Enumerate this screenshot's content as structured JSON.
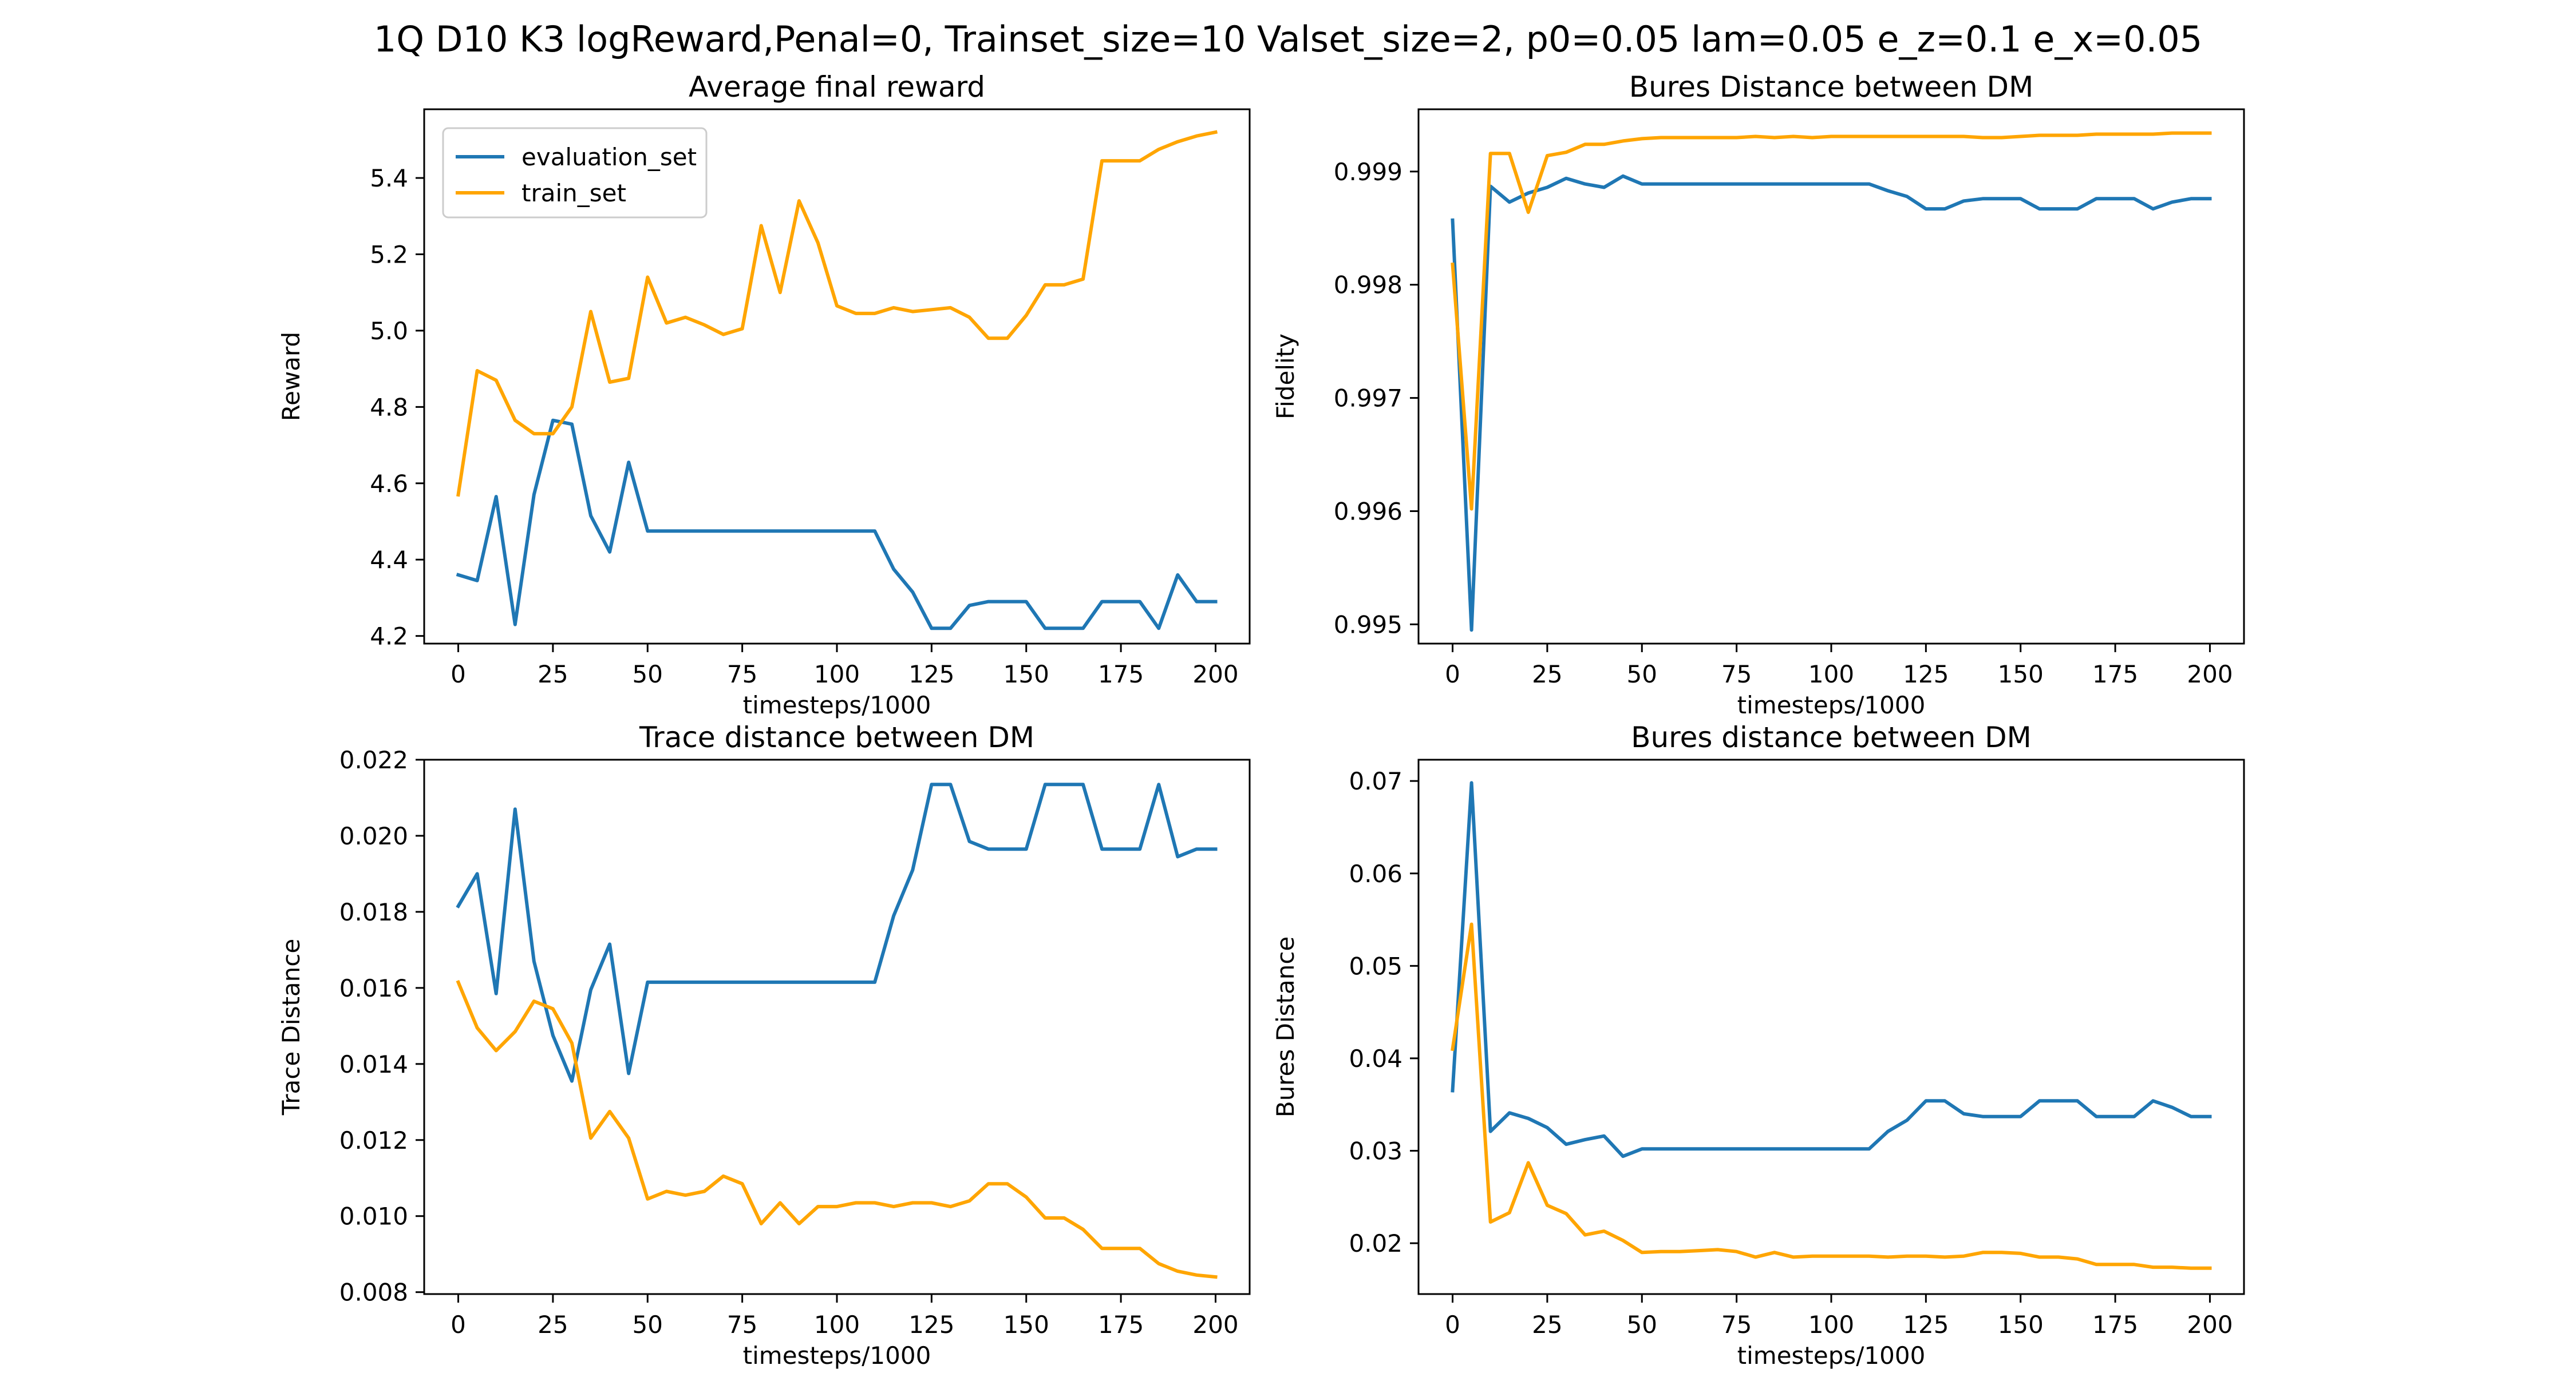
{
  "figure": {
    "suptitle": "1Q D10 K3 logReward,Penal=0, Trainset_size=10 Valset_size=2, p0=0.05 lam=0.05 e_z=0.1 e_x=0.05"
  },
  "colors": {
    "evaluation_set": "#1f77b4",
    "train_set": "#ffa500"
  },
  "chart_data": [
    {
      "type": "line",
      "title": "Average final reward",
      "xlabel": "timesteps/1000",
      "ylabel": "Reward",
      "xlim": [
        -9,
        209
      ],
      "ylim": [
        4.18,
        5.58
      ],
      "xticks": [
        0,
        25,
        50,
        75,
        100,
        125,
        150,
        175,
        200
      ],
      "yticks": [
        4.2,
        4.4,
        4.6,
        4.8,
        5.0,
        5.2,
        5.4
      ],
      "ytick_labels": [
        "4.2",
        "4.4",
        "4.6",
        "4.8",
        "5.0",
        "5.2",
        "5.4"
      ],
      "legend": {
        "position": "upper-left",
        "entries": [
          "evaluation_set",
          "train_set"
        ]
      },
      "x": [
        0,
        5,
        10,
        15,
        20,
        25,
        30,
        35,
        40,
        45,
        50,
        55,
        60,
        65,
        70,
        75,
        80,
        85,
        90,
        95,
        100,
        105,
        110,
        115,
        120,
        125,
        130,
        135,
        140,
        145,
        150,
        155,
        160,
        165,
        170,
        175,
        180,
        185,
        190,
        195,
        200
      ],
      "series": [
        {
          "name": "evaluation_set",
          "values": [
            4.36,
            4.345,
            4.565,
            4.23,
            4.57,
            4.765,
            4.755,
            4.515,
            4.42,
            4.655,
            4.475,
            4.475,
            4.475,
            4.475,
            4.475,
            4.475,
            4.475,
            4.475,
            4.475,
            4.475,
            4.475,
            4.475,
            4.475,
            4.375,
            4.315,
            4.22,
            4.22,
            4.28,
            4.29,
            4.29,
            4.29,
            4.22,
            4.22,
            4.22,
            4.29,
            4.29,
            4.29,
            4.22,
            4.36,
            4.29,
            4.29
          ]
        },
        {
          "name": "train_set",
          "values": [
            4.57,
            4.895,
            4.87,
            4.765,
            4.73,
            4.73,
            4.8,
            5.05,
            4.865,
            4.875,
            5.14,
            5.02,
            5.035,
            5.015,
            4.99,
            5.005,
            5.275,
            5.1,
            5.34,
            5.23,
            5.065,
            5.045,
            5.045,
            5.06,
            5.05,
            5.055,
            5.06,
            5.035,
            4.98,
            4.98,
            5.04,
            5.12,
            5.12,
            5.135,
            5.445,
            5.445,
            5.445,
            5.475,
            5.495,
            5.51,
            5.52
          ]
        }
      ]
    },
    {
      "type": "line",
      "title": "Bures Distance between DM",
      "xlabel": "timesteps/1000",
      "ylabel": "Fidelity",
      "xlim": [
        -9,
        209
      ],
      "ylim": [
        0.99483,
        0.99955
      ],
      "xticks": [
        0,
        25,
        50,
        75,
        100,
        125,
        150,
        175,
        200
      ],
      "yticks": [
        0.995,
        0.996,
        0.997,
        0.998,
        0.999
      ],
      "ytick_labels": [
        "0.995",
        "0.996",
        "0.997",
        "0.998",
        "0.999"
      ],
      "x": [
        0,
        5,
        10,
        15,
        20,
        25,
        30,
        35,
        40,
        45,
        50,
        55,
        60,
        65,
        70,
        75,
        80,
        85,
        90,
        95,
        100,
        105,
        110,
        115,
        120,
        125,
        130,
        135,
        140,
        145,
        150,
        155,
        160,
        165,
        170,
        175,
        180,
        185,
        190,
        195,
        200
      ],
      "series": [
        {
          "name": "evaluation_set",
          "values": [
            0.99857,
            0.99495,
            0.99887,
            0.99873,
            0.99881,
            0.99886,
            0.99894,
            0.99889,
            0.99886,
            0.99896,
            0.99889,
            0.99889,
            0.99889,
            0.99889,
            0.99889,
            0.99889,
            0.99889,
            0.99889,
            0.99889,
            0.99889,
            0.99889,
            0.99889,
            0.99889,
            0.99883,
            0.99878,
            0.99867,
            0.99867,
            0.99874,
            0.99876,
            0.99876,
            0.99876,
            0.99867,
            0.99867,
            0.99867,
            0.99876,
            0.99876,
            0.99876,
            0.99867,
            0.99873,
            0.99876,
            0.99876
          ]
        },
        {
          "name": "train_set",
          "values": [
            0.99818,
            0.99602,
            0.99916,
            0.99916,
            0.99864,
            0.99914,
            0.99917,
            0.99924,
            0.99924,
            0.99927,
            0.99929,
            0.9993,
            0.9993,
            0.9993,
            0.9993,
            0.9993,
            0.99931,
            0.9993,
            0.99931,
            0.9993,
            0.99931,
            0.99931,
            0.99931,
            0.99931,
            0.99931,
            0.99931,
            0.99931,
            0.99931,
            0.9993,
            0.9993,
            0.99931,
            0.99932,
            0.99932,
            0.99932,
            0.99933,
            0.99933,
            0.99933,
            0.99933,
            0.99934,
            0.99934,
            0.99934
          ]
        }
      ]
    },
    {
      "type": "line",
      "title": "Trace distance between DM",
      "xlabel": "timesteps/1000",
      "ylabel": "Trace Distance",
      "xlim": [
        -9,
        209
      ],
      "ylim": [
        0.00795,
        0.022
      ],
      "xticks": [
        0,
        25,
        50,
        75,
        100,
        125,
        150,
        175,
        200
      ],
      "yticks": [
        0.008,
        0.01,
        0.012,
        0.014,
        0.016,
        0.018,
        0.02,
        0.022
      ],
      "ytick_labels": [
        "0.008",
        "0.010",
        "0.012",
        "0.014",
        "0.016",
        "0.018",
        "0.020",
        "0.022"
      ],
      "x": [
        0,
        5,
        10,
        15,
        20,
        25,
        30,
        35,
        40,
        45,
        50,
        55,
        60,
        65,
        70,
        75,
        80,
        85,
        90,
        95,
        100,
        105,
        110,
        115,
        120,
        125,
        130,
        135,
        140,
        145,
        150,
        155,
        160,
        165,
        170,
        175,
        180,
        185,
        190,
        195,
        200
      ],
      "series": [
        {
          "name": "evaluation_set",
          "values": [
            0.01815,
            0.019,
            0.01585,
            0.0207,
            0.0167,
            0.01475,
            0.01355,
            0.01595,
            0.01715,
            0.01375,
            0.01615,
            0.01615,
            0.01615,
            0.01615,
            0.01615,
            0.01615,
            0.01615,
            0.01615,
            0.01615,
            0.01615,
            0.01615,
            0.01615,
            0.01615,
            0.0179,
            0.0191,
            0.02135,
            0.02135,
            0.01985,
            0.01965,
            0.01965,
            0.01965,
            0.02135,
            0.02135,
            0.02135,
            0.01965,
            0.01965,
            0.01965,
            0.02135,
            0.01945,
            0.01965,
            0.01965
          ]
        },
        {
          "name": "train_set",
          "values": [
            0.01615,
            0.01495,
            0.01435,
            0.01485,
            0.01565,
            0.01545,
            0.01455,
            0.01205,
            0.01275,
            0.01205,
            0.01045,
            0.01065,
            0.01055,
            0.01065,
            0.01105,
            0.01085,
            0.0098,
            0.01035,
            0.0098,
            0.01025,
            0.01025,
            0.01035,
            0.01035,
            0.01025,
            0.01035,
            0.01035,
            0.01025,
            0.0104,
            0.01085,
            0.01085,
            0.0105,
            0.00995,
            0.00995,
            0.00965,
            0.00915,
            0.00915,
            0.00915,
            0.00875,
            0.00855,
            0.00845,
            0.0084
          ]
        }
      ]
    },
    {
      "type": "line",
      "title": "Bures distance between DM",
      "xlabel": "timesteps/1000",
      "ylabel": "Bures Distance",
      "xlim": [
        -9,
        209
      ],
      "ylim": [
        0.0145,
        0.0723
      ],
      "xticks": [
        0,
        25,
        50,
        75,
        100,
        125,
        150,
        175,
        200
      ],
      "yticks": [
        0.02,
        0.03,
        0.04,
        0.05,
        0.06,
        0.07
      ],
      "ytick_labels": [
        "0.02",
        "0.03",
        "0.04",
        "0.05",
        "0.06",
        "0.07"
      ],
      "x": [
        0,
        5,
        10,
        15,
        20,
        25,
        30,
        35,
        40,
        45,
        50,
        55,
        60,
        65,
        70,
        75,
        80,
        85,
        90,
        95,
        100,
        105,
        110,
        115,
        120,
        125,
        130,
        135,
        140,
        145,
        150,
        155,
        160,
        165,
        170,
        175,
        180,
        185,
        190,
        195,
        200
      ],
      "series": [
        {
          "name": "evaluation_set",
          "values": [
            0.0365,
            0.0698,
            0.0321,
            0.0341,
            0.0335,
            0.0325,
            0.0307,
            0.0312,
            0.0316,
            0.0294,
            0.0302,
            0.0302,
            0.0302,
            0.0302,
            0.0302,
            0.0302,
            0.0302,
            0.0302,
            0.0302,
            0.0302,
            0.0302,
            0.0302,
            0.0302,
            0.0321,
            0.0333,
            0.0354,
            0.0354,
            0.034,
            0.0337,
            0.0337,
            0.0337,
            0.0354,
            0.0354,
            0.0354,
            0.0337,
            0.0337,
            0.0337,
            0.0354,
            0.0347,
            0.0337,
            0.0337
          ]
        },
        {
          "name": "train_set",
          "values": [
            0.041,
            0.0545,
            0.0223,
            0.0233,
            0.0287,
            0.0241,
            0.0232,
            0.0209,
            0.0213,
            0.0203,
            0.019,
            0.0191,
            0.0191,
            0.0192,
            0.0193,
            0.0191,
            0.0185,
            0.019,
            0.0185,
            0.0186,
            0.0186,
            0.0186,
            0.0186,
            0.0185,
            0.0186,
            0.0186,
            0.0185,
            0.0186,
            0.019,
            0.019,
            0.0189,
            0.0185,
            0.0185,
            0.0183,
            0.0177,
            0.0177,
            0.0177,
            0.0174,
            0.0174,
            0.0173,
            0.0173
          ]
        }
      ]
    }
  ]
}
